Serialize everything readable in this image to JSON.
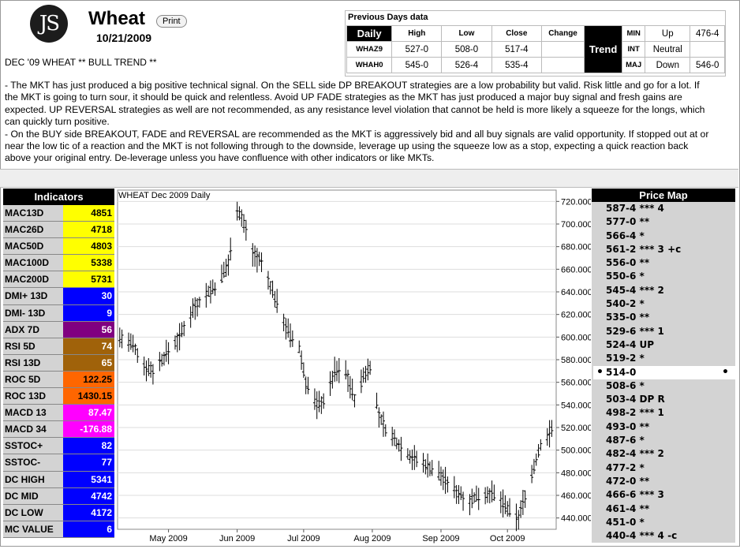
{
  "header": {
    "logo": "JS",
    "title": "Wheat",
    "print_label": "Print",
    "date": "10/21/2009"
  },
  "headline": "DEC '09 WHEAT ** BULL TREND **",
  "commentary": [
    "- The MKT has just produced a big positive technical signal. On the SELL side DP BREAKOUT strategies are a low probability but valid. Risk little and go for a lot. If the MKT is going to turn sour, it should be quick and relentless. Avoid UP FADE strategies as the MKT has just produced a major buy signal and fresh gains are expected. UP REVERSAL strategies as well are not recommended, as any resistance level violation that cannot be held is more likely a squeeze for the longs, which can quickly turn positive.",
    "- On the BUY side BREAKOUT, FADE and REVERSAL are recommended as the MKT is aggressively bid and all buy signals are valid opportunity. If stopped out at or near the low tic of a reaction and the MKT is not following through to the downside, leverage up using the squeeze low as a stop, expecting a quick reaction back above your original entry. De-leverage unless you have confluence with other indicators or like MKTs."
  ],
  "previous_days": {
    "title": "Previous Days data",
    "period": "Daily",
    "columns": [
      "High",
      "Low",
      "Close",
      "Change"
    ],
    "rows": [
      {
        "label": "WHAZ9",
        "high": "527-0",
        "low": "508-0",
        "close": "517-4",
        "change": ""
      },
      {
        "label": "WHAH0",
        "high": "545-0",
        "low": "526-4",
        "close": "535-4",
        "change": ""
      }
    ],
    "trend_label": "Trend",
    "trend": [
      {
        "label": "MIN",
        "direction": "Up",
        "value": "476-4"
      },
      {
        "label": "INT",
        "direction": "Neutral",
        "value": ""
      },
      {
        "label": "MAJ",
        "direction": "Down",
        "value": "546-0"
      }
    ]
  },
  "indicators": {
    "title": "Indicators",
    "items": [
      {
        "name": "MAC13D",
        "value": "4851",
        "color": "#ffff00",
        "text": "#000000"
      },
      {
        "name": "MAC26D",
        "value": "4718",
        "color": "#ffff00",
        "text": "#000000"
      },
      {
        "name": "MAC50D",
        "value": "4803",
        "color": "#ffff00",
        "text": "#000000"
      },
      {
        "name": "MAC100D",
        "value": "5338",
        "color": "#ffff00",
        "text": "#000000"
      },
      {
        "name": "MAC200D",
        "value": "5731",
        "color": "#ffff00",
        "text": "#000000"
      },
      {
        "name": "DMI+ 13D",
        "value": "30",
        "color": "#0000ff",
        "text": "#ffffff"
      },
      {
        "name": "DMI- 13D",
        "value": "9",
        "color": "#0000ff",
        "text": "#ffffff"
      },
      {
        "name": "ADX 7D",
        "value": "56",
        "color": "#800080",
        "text": "#ffffff"
      },
      {
        "name": "RSI 5D",
        "value": "74",
        "color": "#a0620a",
        "text": "#ffffff"
      },
      {
        "name": "RSI 13D",
        "value": "65",
        "color": "#a0620a",
        "text": "#ffffff"
      },
      {
        "name": "ROC 5D",
        "value": "122.25",
        "color": "#ff6600",
        "text": "#000000"
      },
      {
        "name": "ROC 13D",
        "value": "1430.15",
        "color": "#ff6600",
        "text": "#000000"
      },
      {
        "name": "MACD 13",
        "value": "87.47",
        "color": "#ff00ff",
        "text": "#ffffff"
      },
      {
        "name": "MACD 34",
        "value": "-176.88",
        "color": "#ff00ff",
        "text": "#ffffff"
      },
      {
        "name": "SSTOC+",
        "value": "82",
        "color": "#0000ff",
        "text": "#ffffff"
      },
      {
        "name": "SSTOC-",
        "value": "77",
        "color": "#0000ff",
        "text": "#ffffff"
      },
      {
        "name": "DC HIGH",
        "value": "5341",
        "color": "#0000ff",
        "text": "#ffffff"
      },
      {
        "name": "DC MID",
        "value": "4742",
        "color": "#0000ff",
        "text": "#ffffff"
      },
      {
        "name": "DC LOW",
        "value": "4172",
        "color": "#0000ff",
        "text": "#ffffff"
      },
      {
        "name": "MC VALUE",
        "value": "6",
        "color": "#0000ff",
        "text": "#ffffff"
      }
    ]
  },
  "price_map": {
    "title": "Price Map",
    "current": "514-0",
    "items": [
      "587-4 *** 4",
      "577-0 **",
      "566-4 *",
      "561-2 *** 3 +c",
      "556-0 **",
      "550-6 *",
      "545-4 *** 2",
      "540-2 *",
      "535-0 **",
      "529-6 *** 1",
      "524-4 UP",
      "519-2 *",
      "514-0",
      "508-6 *",
      "503-4 DP R",
      "498-2 *** 1",
      "493-0 **",
      "487-6 *",
      "482-4 *** 2",
      "477-2 *",
      "472-0 **",
      "466-6 *** 3",
      "461-4 **",
      "451-0 *",
      "440-4 *** 4 -c"
    ]
  },
  "chart_data": {
    "type": "ohlc",
    "title": "WHEAT Dec 2009 Daily",
    "ylim": [
      430,
      730
    ],
    "yticks": [
      440,
      460,
      480,
      500,
      520,
      540,
      560,
      580,
      600,
      620,
      640,
      660,
      680,
      700,
      720
    ],
    "ytick_labels": [
      "440.000",
      "460.000",
      "480.000",
      "500.000",
      "520.000",
      "540.000",
      "560.000",
      "580.000",
      "600.000",
      "620.000",
      "640.000",
      "660.000",
      "680.000",
      "700.000",
      "720.000"
    ],
    "xlim": [
      "2009-04-08",
      "2009-10-23"
    ],
    "xticks": [
      {
        "date": "2009-05-01",
        "label": "May 2009"
      },
      {
        "date": "2009-06-01",
        "label": "Jun 2009"
      },
      {
        "date": "2009-07-01",
        "label": "Jul 2009"
      },
      {
        "date": "2009-08-01",
        "label": "Aug 2009"
      },
      {
        "date": "2009-09-01",
        "label": "Sep 2009"
      },
      {
        "date": "2009-10-01",
        "label": "Oct 2009"
      }
    ],
    "anchors": [
      [
        "2009-04-09",
        600
      ],
      [
        "2009-04-15",
        592
      ],
      [
        "2009-04-20",
        575
      ],
      [
        "2009-04-24",
        570
      ],
      [
        "2009-04-30",
        585
      ],
      [
        "2009-05-06",
        600
      ],
      [
        "2009-05-12",
        625
      ],
      [
        "2009-05-19",
        640
      ],
      [
        "2009-05-23",
        645
      ],
      [
        "2009-05-28",
        665
      ],
      [
        "2009-06-01",
        715
      ],
      [
        "2009-06-04",
        700
      ],
      [
        "2009-06-08",
        675
      ],
      [
        "2009-06-12",
        665
      ],
      [
        "2009-06-16",
        645
      ],
      [
        "2009-06-21",
        620
      ],
      [
        "2009-06-25",
        600
      ],
      [
        "2009-06-29",
        590
      ],
      [
        "2009-07-02",
        560
      ],
      [
        "2009-07-07",
        540
      ],
      [
        "2009-07-11",
        545
      ],
      [
        "2009-07-15",
        570
      ],
      [
        "2009-07-20",
        570
      ],
      [
        "2009-07-24",
        545
      ],
      [
        "2009-07-28",
        565
      ],
      [
        "2009-07-31",
        575
      ],
      [
        "2009-08-04",
        530
      ],
      [
        "2009-08-08",
        515
      ],
      [
        "2009-08-13",
        505
      ],
      [
        "2009-08-18",
        495
      ],
      [
        "2009-08-22",
        490
      ],
      [
        "2009-08-27",
        485
      ],
      [
        "2009-08-31",
        480
      ],
      [
        "2009-09-04",
        470
      ],
      [
        "2009-09-09",
        462
      ],
      [
        "2009-09-14",
        455
      ],
      [
        "2009-09-18",
        460
      ],
      [
        "2009-09-23",
        462
      ],
      [
        "2009-09-28",
        455
      ],
      [
        "2009-10-02",
        445
      ],
      [
        "2009-10-06",
        440
      ],
      [
        "2009-10-09",
        460
      ],
      [
        "2009-10-13",
        485
      ],
      [
        "2009-10-16",
        505
      ],
      [
        "2009-10-20",
        515
      ],
      [
        "2009-10-21",
        517
      ]
    ]
  }
}
